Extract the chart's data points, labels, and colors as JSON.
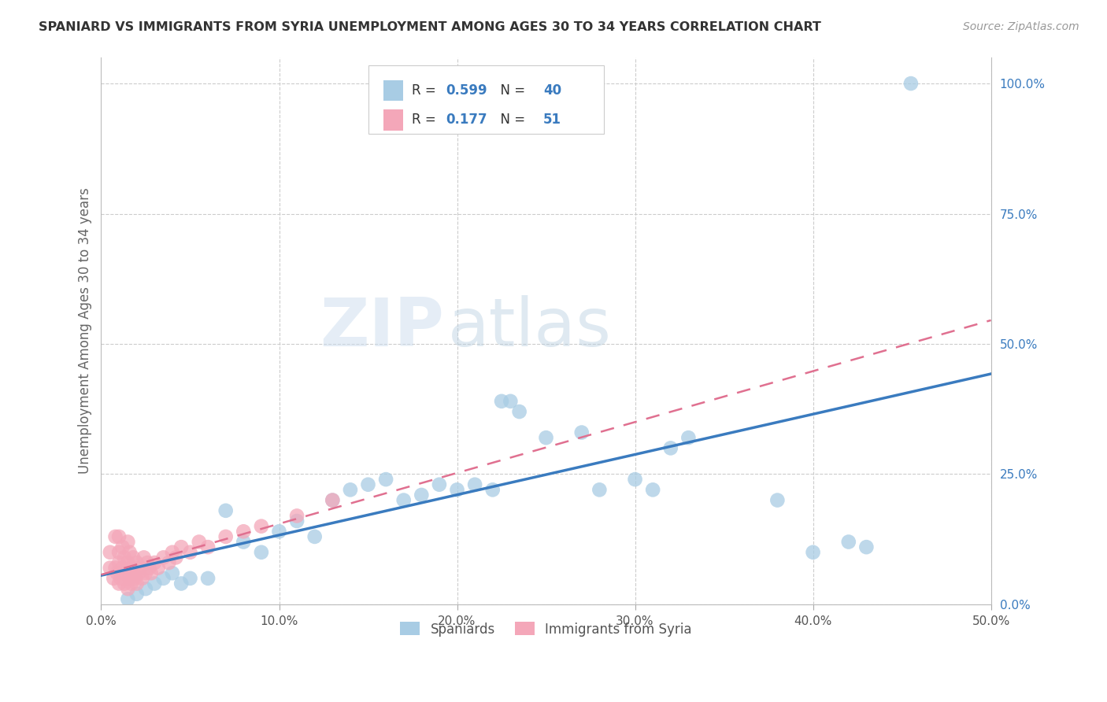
{
  "title": "SPANIARD VS IMMIGRANTS FROM SYRIA UNEMPLOYMENT AMONG AGES 30 TO 34 YEARS CORRELATION CHART",
  "source": "Source: ZipAtlas.com",
  "ylabel": "Unemployment Among Ages 30 to 34 years",
  "xlim": [
    0.0,
    0.5
  ],
  "ylim": [
    0.0,
    1.05
  ],
  "xticks": [
    0.0,
    0.1,
    0.2,
    0.3,
    0.4,
    0.5
  ],
  "xticklabels": [
    "0.0%",
    "10.0%",
    "20.0%",
    "30.0%",
    "40.0%",
    "50.0%"
  ],
  "yticks_right": [
    0.0,
    0.25,
    0.5,
    0.75,
    1.0
  ],
  "yticklabels_right": [
    "0.0%",
    "25.0%",
    "50.0%",
    "75.0%",
    "100.0%"
  ],
  "watermark_zip": "ZIP",
  "watermark_atlas": "atlas",
  "legend_spaniards_label": "Spaniards",
  "legend_syria_label": "Immigrants from Syria",
  "R_spaniards": "0.599",
  "N_spaniards": "40",
  "R_syria": "0.177",
  "N_syria": "51",
  "blue_scatter_color": "#a8cce4",
  "blue_line_color": "#3a7bbf",
  "pink_scatter_color": "#f4a7b9",
  "pink_line_color": "#e07090",
  "label_color": "#3a7bbf",
  "spaniards_x": [
    0.455,
    0.015,
    0.02,
    0.025,
    0.03,
    0.035,
    0.04,
    0.045,
    0.05,
    0.06,
    0.07,
    0.08,
    0.09,
    0.1,
    0.11,
    0.12,
    0.13,
    0.14,
    0.15,
    0.16,
    0.17,
    0.18,
    0.19,
    0.2,
    0.21,
    0.22,
    0.225,
    0.23,
    0.235,
    0.25,
    0.27,
    0.28,
    0.3,
    0.31,
    0.32,
    0.33,
    0.38,
    0.4,
    0.42,
    0.43
  ],
  "spaniards_y": [
    1.0,
    0.01,
    0.02,
    0.03,
    0.04,
    0.05,
    0.06,
    0.04,
    0.05,
    0.05,
    0.18,
    0.12,
    0.1,
    0.14,
    0.16,
    0.13,
    0.2,
    0.22,
    0.23,
    0.24,
    0.2,
    0.21,
    0.23,
    0.22,
    0.23,
    0.22,
    0.39,
    0.39,
    0.37,
    0.32,
    0.33,
    0.22,
    0.24,
    0.22,
    0.3,
    0.32,
    0.2,
    0.1,
    0.12,
    0.11
  ],
  "syria_x": [
    0.005,
    0.005,
    0.007,
    0.008,
    0.008,
    0.009,
    0.01,
    0.01,
    0.01,
    0.01,
    0.011,
    0.012,
    0.012,
    0.013,
    0.013,
    0.014,
    0.015,
    0.015,
    0.015,
    0.016,
    0.016,
    0.017,
    0.017,
    0.018,
    0.018,
    0.019,
    0.02,
    0.02,
    0.021,
    0.022,
    0.023,
    0.024,
    0.025,
    0.026,
    0.027,
    0.028,
    0.03,
    0.032,
    0.035,
    0.038,
    0.04,
    0.042,
    0.045,
    0.05,
    0.055,
    0.06,
    0.07,
    0.08,
    0.09,
    0.11,
    0.13
  ],
  "syria_y": [
    0.07,
    0.1,
    0.05,
    0.13,
    0.07,
    0.06,
    0.04,
    0.08,
    0.1,
    0.13,
    0.05,
    0.07,
    0.11,
    0.04,
    0.09,
    0.06,
    0.03,
    0.08,
    0.12,
    0.05,
    0.1,
    0.04,
    0.07,
    0.06,
    0.09,
    0.05,
    0.04,
    0.08,
    0.06,
    0.07,
    0.05,
    0.09,
    0.06,
    0.08,
    0.07,
    0.06,
    0.08,
    0.07,
    0.09,
    0.08,
    0.1,
    0.09,
    0.11,
    0.1,
    0.12,
    0.11,
    0.13,
    0.14,
    0.15,
    0.17,
    0.2
  ]
}
